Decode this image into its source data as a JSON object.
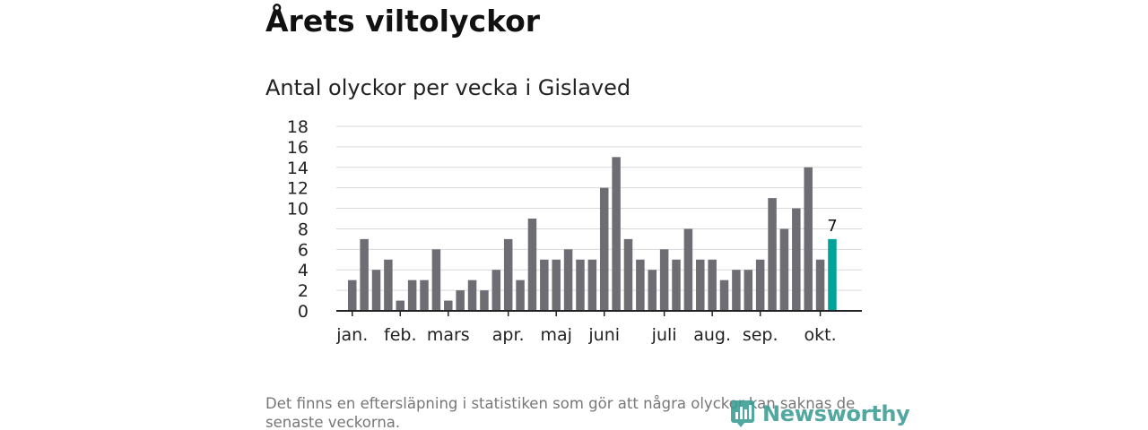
{
  "title": "Årets viltolyckor",
  "subtitle": "Antal olyckor per vecka i Gislaved",
  "footnote": "Det finns en eftersläpning i statistiken som gör att några olyckor kan saknas de senaste veckorna.",
  "brand": {
    "name": "Newsworthy",
    "icon": "newsworthy-logo-icon"
  },
  "colors": {
    "bar": "#6e6d73",
    "highlight": "#00a39a",
    "grid": "#d9d9d9",
    "axis": "#222222"
  },
  "chart_data": {
    "type": "bar",
    "title": "Antal olyckor per vecka i Gislaved",
    "xlabel": "",
    "ylabel": "",
    "ylim": [
      0,
      18
    ],
    "yticks": [
      0,
      2,
      4,
      6,
      8,
      10,
      12,
      14,
      16,
      18
    ],
    "grid": true,
    "values": [
      3,
      7,
      4,
      5,
      1,
      3,
      3,
      6,
      1,
      2,
      3,
      2,
      4,
      7,
      3,
      9,
      5,
      5,
      6,
      5,
      5,
      12,
      15,
      7,
      5,
      4,
      6,
      5,
      8,
      5,
      5,
      3,
      4,
      4,
      5,
      11,
      8,
      10,
      14,
      5,
      7
    ],
    "highlight_index": 40,
    "highlight_label": "7",
    "month_labels": [
      {
        "label": "jan.",
        "week_index": 0
      },
      {
        "label": "feb.",
        "week_index": 4
      },
      {
        "label": "mars",
        "week_index": 8
      },
      {
        "label": "apr.",
        "week_index": 13
      },
      {
        "label": "maj",
        "week_index": 17
      },
      {
        "label": "juni",
        "week_index": 21
      },
      {
        "label": "juli",
        "week_index": 26
      },
      {
        "label": "aug.",
        "week_index": 30
      },
      {
        "label": "sep.",
        "week_index": 34
      },
      {
        "label": "okt.",
        "week_index": 39
      }
    ]
  }
}
